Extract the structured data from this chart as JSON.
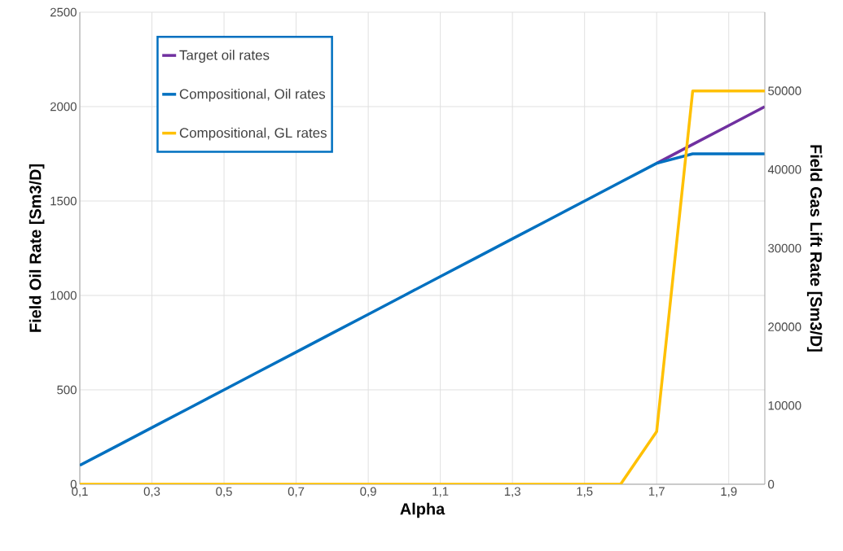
{
  "chart_data": {
    "type": "line",
    "xlabel": "Alpha",
    "ylabel": "Field Oil Rate [Sm3/D]",
    "y2label": "Field Gas Lift Rate [Sm3/D]",
    "x": [
      0.1,
      0.2,
      0.3,
      0.4,
      0.5,
      0.6,
      0.7,
      0.8,
      0.9,
      1.0,
      1.1,
      1.2,
      1.3,
      1.4,
      1.5,
      1.6,
      1.7,
      1.8,
      1.9,
      2.0
    ],
    "series": [
      {
        "name": "Target oil rates",
        "color": "#7030a0",
        "values": [
          null,
          null,
          null,
          null,
          null,
          null,
          null,
          null,
          null,
          null,
          null,
          null,
          null,
          null,
          null,
          null,
          1700,
          1800,
          1900,
          2000
        ]
      },
      {
        "name": "Compositional, Oil rates",
        "color": "#0070c0",
        "values": [
          100,
          200,
          300,
          400,
          500,
          600,
          700,
          800,
          900,
          1000,
          1100,
          1200,
          1300,
          1400,
          1500,
          1600,
          1700,
          1750,
          1750,
          1750
        ]
      },
      {
        "name": "Compositional, GL rates",
        "color": "#ffc000",
        "axis": "y2",
        "values": [
          0,
          0,
          0,
          0,
          0,
          0,
          0,
          0,
          0,
          0,
          0,
          0,
          0,
          0,
          0,
          0,
          6700,
          50000,
          50000,
          50000
        ]
      }
    ],
    "xlim": [
      0.1,
      2.0
    ],
    "xticks": [
      {
        "value": 0.1,
        "label": "0,1"
      },
      {
        "value": 0.3,
        "label": "0,3"
      },
      {
        "value": 0.5,
        "label": "0,5"
      },
      {
        "value": 0.7,
        "label": "0,7"
      },
      {
        "value": 0.9,
        "label": "0,9"
      },
      {
        "value": 1.1,
        "label": "1,1"
      },
      {
        "value": 1.3,
        "label": "1,3"
      },
      {
        "value": 1.5,
        "label": "1,5"
      },
      {
        "value": 1.7,
        "label": "1,7"
      },
      {
        "value": 1.9,
        "label": "1,9"
      }
    ],
    "ylim": [
      0,
      2500
    ],
    "yticks": [
      0,
      500,
      1000,
      1500,
      2000,
      2500
    ],
    "y2lim": [
      0,
      60000
    ],
    "y2ticks": [
      0,
      10000,
      20000,
      30000,
      40000,
      50000
    ],
    "grid": true,
    "legend": "top left",
    "marker": "none",
    "line_style": "solid"
  }
}
